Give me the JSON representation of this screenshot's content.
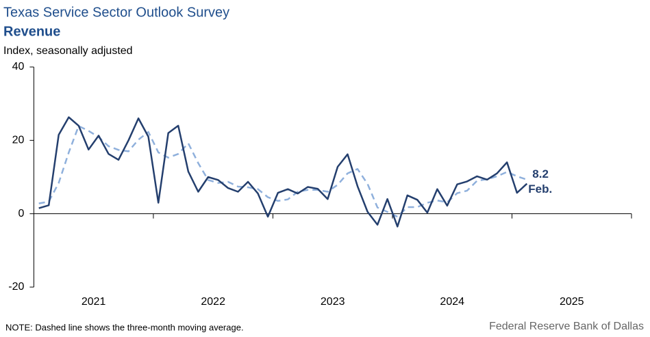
{
  "chart_data": {
    "type": "line",
    "title": "Texas Service Sector Outlook Survey",
    "subtitle": "Revenue",
    "y_label": "Index, seasonally adjusted",
    "annotation": "Feb.",
    "note": "NOTE: Dashed line shows the three-month  moving average.",
    "source": "Federal Reserve Bank of Dallas",
    "x": [
      2021.042,
      2021.125,
      2021.208,
      2021.292,
      2021.375,
      2021.458,
      2021.542,
      2021.625,
      2021.708,
      2021.792,
      2021.875,
      2021.958,
      2022.042,
      2022.125,
      2022.208,
      2022.292,
      2022.375,
      2022.458,
      2022.542,
      2022.625,
      2022.708,
      2022.792,
      2022.875,
      2022.958,
      2023.042,
      2023.125,
      2023.208,
      2023.292,
      2023.375,
      2023.458,
      2023.542,
      2023.625,
      2023.708,
      2023.792,
      2023.875,
      2023.958,
      2024.042,
      2024.125,
      2024.208,
      2024.292,
      2024.375,
      2024.458,
      2024.542,
      2024.625,
      2024.708,
      2024.792,
      2024.875,
      2024.958,
      2025.042,
      2025.125
    ],
    "series": [
      {
        "color": "#243f6e",
        "dashed": false,
        "values": [
          1.5,
          2.3,
          21.5,
          26.3,
          24,
          17.5,
          21.3,
          16.3,
          14.7,
          20,
          26,
          21,
          3,
          22,
          24,
          11.5,
          6,
          10,
          9.2,
          7,
          6,
          8.7,
          5.5,
          -0.8,
          5.7,
          6.7,
          5.5,
          7.3,
          6.8,
          4,
          12.8,
          16.2,
          7.5,
          0.5,
          -3,
          4,
          -3.5,
          5,
          3.8,
          0.3,
          6.7,
          2.2,
          8,
          8.8,
          10.2,
          9.3,
          11,
          14,
          5.7,
          8.2
        ]
      },
      {
        "color": "#8fb0dc",
        "dashed": true,
        "values": [
          2.8,
          3.3,
          8.4,
          16.7,
          23.9,
          22.6,
          20.9,
          18.4,
          17.4,
          17,
          20.2,
          22.3,
          16.7,
          15.3,
          16.3,
          19.2,
          13.8,
          9.2,
          8.4,
          8.7,
          7.4,
          7.2,
          6.7,
          4.5,
          3.5,
          3.9,
          6,
          6.5,
          6.5,
          6,
          7.9,
          11,
          12.2,
          8.1,
          1.7,
          0.5,
          -0.8,
          1.8,
          1.8,
          3,
          3.6,
          3.1,
          5.6,
          6.3,
          9,
          9.4,
          10.2,
          11.4,
          10.2,
          9.3
        ]
      }
    ],
    "xlim": [
      2021,
      2026
    ],
    "xticks": [
      2021,
      2022,
      2023,
      2024,
      2025
    ],
    "ylim": [
      -20,
      40
    ],
    "yticks": [
      -20,
      0,
      20,
      40
    ]
  }
}
